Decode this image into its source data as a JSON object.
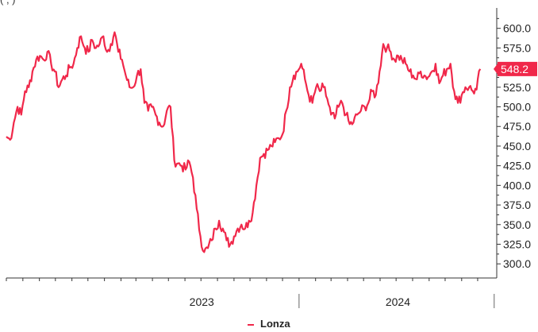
{
  "chart_data": {
    "type": "line",
    "title": "",
    "xlabel": "",
    "ylabel": "",
    "x_ticks": [
      "2023",
      "2024"
    ],
    "y_ticks": [
      300.0,
      325.0,
      350.0,
      375.0,
      400.0,
      425.0,
      450.0,
      475.0,
      500.0,
      525.0,
      550.0,
      575.0,
      600.0
    ],
    "ylim": [
      282,
      628
    ],
    "last_value_label": "548.2",
    "grid": false,
    "legend_position": "bottom-center",
    "series": [
      {
        "name": "Lonza",
        "color": "#f0284a",
        "x": [
          "2022-07-01",
          "2022-07-08",
          "2022-07-15",
          "2022-07-22",
          "2022-07-29",
          "2022-08-05",
          "2022-08-12",
          "2022-08-19",
          "2022-08-26",
          "2022-09-02",
          "2022-09-09",
          "2022-09-16",
          "2022-09-23",
          "2022-09-30",
          "2022-10-07",
          "2022-10-14",
          "2022-10-21",
          "2022-10-28",
          "2022-11-04",
          "2022-11-11",
          "2022-11-18",
          "2022-11-25",
          "2022-12-02",
          "2022-12-09",
          "2022-12-16",
          "2022-12-23",
          "2022-12-30",
          "2023-01-06",
          "2023-01-13",
          "2023-01-20",
          "2023-01-27",
          "2023-02-03",
          "2023-02-10",
          "2023-02-17",
          "2023-02-24",
          "2023-03-03",
          "2023-03-10",
          "2023-03-17",
          "2023-03-24",
          "2023-03-31",
          "2023-04-07",
          "2023-04-14",
          "2023-04-21",
          "2023-04-28",
          "2023-05-05",
          "2023-05-12",
          "2023-05-19",
          "2023-05-26",
          "2023-06-02",
          "2023-06-09",
          "2023-06-16",
          "2023-06-23",
          "2023-06-30",
          "2023-07-07",
          "2023-07-14",
          "2023-07-21",
          "2023-07-28",
          "2023-08-04",
          "2023-08-11",
          "2023-08-18",
          "2023-08-25",
          "2023-09-01",
          "2023-09-08",
          "2023-09-15",
          "2023-09-22",
          "2023-09-29",
          "2023-10-06",
          "2023-10-13",
          "2023-10-20",
          "2023-10-27",
          "2023-11-03",
          "2023-11-10",
          "2023-11-17",
          "2023-11-24",
          "2023-12-01",
          "2023-12-08",
          "2023-12-15",
          "2023-12-22",
          "2023-12-29",
          "2024-01-05",
          "2024-01-12",
          "2024-01-19",
          "2024-01-26",
          "2024-02-02",
          "2024-02-09",
          "2024-02-16",
          "2024-02-23",
          "2024-03-01",
          "2024-03-08",
          "2024-03-15",
          "2024-03-22",
          "2024-03-29",
          "2024-04-05",
          "2024-04-12",
          "2024-04-19",
          "2024-04-26",
          "2024-05-03",
          "2024-05-10",
          "2024-05-17",
          "2024-05-24",
          "2024-05-31",
          "2024-06-07",
          "2024-06-14",
          "2024-06-21",
          "2024-06-28",
          "2024-07-05",
          "2024-07-12",
          "2024-07-19",
          "2024-07-26",
          "2024-08-02",
          "2024-08-09",
          "2024-08-16",
          "2024-08-23",
          "2024-08-30",
          "2024-09-06",
          "2024-09-13",
          "2024-09-20",
          "2024-09-27",
          "2024-10-04",
          "2024-10-11",
          "2024-10-18",
          "2024-10-25",
          "2024-11-01",
          "2024-11-08",
          "2024-11-15",
          "2024-11-22",
          "2024-11-29",
          "2024-12-06"
        ],
        "values": [
          462,
          458,
          480,
          500,
          490,
          520,
          525,
          545,
          560,
          565,
          560,
          570,
          555,
          545,
          525,
          535,
          540,
          550,
          555,
          575,
          590,
          575,
          570,
          585,
          575,
          580,
          590,
          570,
          580,
          595,
          570,
          560,
          540,
          525,
          525,
          540,
          548,
          505,
          495,
          500,
          490,
          480,
          475,
          495,
          500,
          432,
          428,
          425,
          420,
          430,
          410,
          370,
          335,
          315,
          320,
          330,
          345,
          355,
          345,
          330,
          325,
          335,
          345,
          350,
          345,
          355,
          365,
          400,
          435,
          440,
          445,
          450,
          455,
          460,
          465,
          495,
          525,
          540,
          545,
          555,
          535,
          515,
          505,
          525,
          520,
          525,
          510,
          490,
          485,
          500,
          505,
          490,
          478,
          480,
          490,
          495,
          500,
          505,
          520,
          515,
          545,
          580,
          575,
          570,
          560,
          565,
          560,
          555,
          545,
          540,
          535,
          545,
          540,
          538,
          545,
          555,
          530,
          540,
          548,
          555,
          520,
          505,
          515,
          525,
          525,
          520,
          522,
          548.2
        ]
      }
    ],
    "legend_label": "Lonza",
    "top_text": "(             ,     )"
  }
}
